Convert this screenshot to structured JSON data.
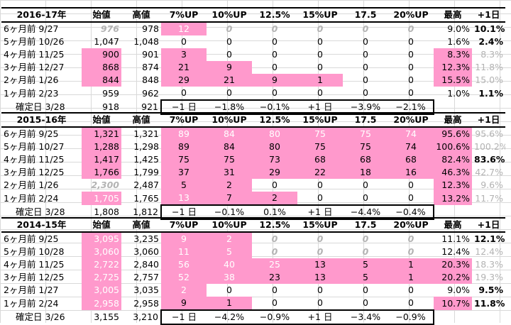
{
  "headers": [
    "始値",
    "高値",
    "7%UP",
    "10%UP",
    "12.5%",
    "15%UP",
    "17.5",
    "20%UP",
    "最高",
    "+1日"
  ],
  "blocks": [
    {
      "year": "2016-17年",
      "rows": [
        {
          "label": "6ヶ月前  9/27",
          "open": "976",
          "high": "978",
          "c7": "12",
          "c10": "0",
          "c12": "0",
          "c15": "0",
          "c17": "0",
          "c20": "0",
          "max": "9.0%",
          "p1": "10.1%"
        },
        {
          "label": "5ヶ月前 10/26",
          "open": "1,047",
          "high": "1,048",
          "c7": "0",
          "c10": "0",
          "c12": "0",
          "c15": "0",
          "c17": "0",
          "c20": "0",
          "max": "1.6%",
          "p1": "2.4%"
        },
        {
          "label": "4ヶ月前 11/25",
          "open": "900",
          "high": "901",
          "c7": "3",
          "c10": "0",
          "c12": "0",
          "c15": "0",
          "c17": "0",
          "c20": "0",
          "max": "8.3%",
          "p1": "8.3%"
        },
        {
          "label": "3ヶ月前 12/27",
          "open": "868",
          "high": "874",
          "c7": "21",
          "c10": "9",
          "c12": "0",
          "c15": "0",
          "c17": "0",
          "c20": "0",
          "max": "12.3%",
          "p1": "11.8%"
        },
        {
          "label": "2ヶ月前  1/26",
          "open": "844",
          "high": "848",
          "c7": "29",
          "c10": "21",
          "c12": "9",
          "c15": "1",
          "c17": "0",
          "c20": "0",
          "max": "15.5%",
          "p1": "15.0%"
        },
        {
          "label": "1ヶ月前  2/23",
          "open": "959",
          "high": "962",
          "c7": "0",
          "c10": "0",
          "c12": "0",
          "c15": "0",
          "c17": "0",
          "c20": "0",
          "max": "1.0%",
          "p1": "1.1%"
        }
      ],
      "last": {
        "label": "確定日  3/28",
        "open": "918",
        "high": "921",
        "c7": "−1 日",
        "c10": "−1.8%",
        "c12": "−0.1%",
        "c15": "+1 日",
        "c17": "−3.9%",
        "c20": "−2.1%"
      }
    },
    {
      "year": "2015-16年",
      "rows": [
        {
          "label": "6ヶ月前  9/25",
          "open": "1,321",
          "high": "1,321",
          "c7": "89",
          "c10": "84",
          "c12": "80",
          "c15": "75",
          "c17": "75",
          "c20": "74",
          "max": "95.6%",
          "p1": "95.6%"
        },
        {
          "label": "5ヶ月前 10/27",
          "open": "1,288",
          "high": "1,298",
          "c7": "89",
          "c10": "84",
          "c12": "80",
          "c15": "75",
          "c17": "75",
          "c20": "74",
          "max": "100.6%",
          "p1": "100.2%"
        },
        {
          "label": "4ヶ月前 11/25",
          "open": "1,417",
          "high": "1,425",
          "c7": "75",
          "c10": "75",
          "c12": "73",
          "c15": "68",
          "c17": "68",
          "c20": "68",
          "max": "82.4%",
          "p1": "83.6%"
        },
        {
          "label": "3ヶ月前 12/25",
          "open": "1,766",
          "high": "1,799",
          "c7": "37",
          "c10": "31",
          "c12": "29",
          "c15": "22",
          "c17": "18",
          "c20": "16",
          "max": "46.3%",
          "p1": "42.7%"
        },
        {
          "label": "2ヶ月前  1/26",
          "open": "2,300",
          "high": "2,487",
          "c7": "5",
          "c10": "2",
          "c12": "0",
          "c15": "0",
          "c17": "0",
          "c20": "0",
          "max": "12.3%",
          "p1": "9.6%"
        },
        {
          "label": "1ヶ月前  2/24",
          "open": "1,705",
          "high": "1,765",
          "c7": "13",
          "c10": "7",
          "c12": "2",
          "c15": "0",
          "c17": "0",
          "c20": "0",
          "max": "13.2%",
          "p1": "11.7%"
        }
      ],
      "last": {
        "label": "確定日  3/28",
        "open": "1,808",
        "high": "1,812",
        "c7": "−1 日",
        "c10": "−0.1%",
        "c12": "0.1%",
        "c15": "+1 日",
        "c17": "−4.4%",
        "c20": "−0.4%"
      }
    },
    {
      "year": "2014-15年",
      "rows": [
        {
          "label": "6ヶ月前  9/25",
          "open": "3,095",
          "high": "3,235",
          "c7": "9",
          "c10": "2",
          "c12": "0",
          "c15": "0",
          "c17": "0",
          "c20": "0",
          "max": "11.1%",
          "p1": "12.1%"
        },
        {
          "label": "5ヶ月前 10/28",
          "open": "3,060",
          "high": "3,060",
          "c7": "11",
          "c10": "5",
          "c12": "0",
          "c15": "0",
          "c17": "0",
          "c20": "0",
          "max": "12.4%",
          "p1": "12.4%"
        },
        {
          "label": "4ヶ月前 11/25",
          "open": "2,722",
          "high": "2,840",
          "c7": "56",
          "c10": "40",
          "c12": "25",
          "c15": "13",
          "c17": "5",
          "c20": "1",
          "max": "20.3%",
          "p1": "18.3%"
        },
        {
          "label": "3ヶ月前 12/25",
          "open": "2,725",
          "high": "2,757",
          "c7": "52",
          "c10": "38",
          "c12": "23",
          "c15": "13",
          "c17": "5",
          "c20": "1",
          "max": "20.2%",
          "p1": "19.3%"
        },
        {
          "label": "2ヶ月前  1/27",
          "open": "3,005",
          "high": "3,035",
          "c7": "2",
          "c10": "0",
          "c12": "0",
          "c15": "0",
          "c17": "0",
          "c20": "0",
          "max": "9.0%",
          "p1": "9.5%"
        },
        {
          "label": "1ヶ月前  2/24",
          "open": "2,958",
          "high": "2,958",
          "c7": "9",
          "c10": "1",
          "c12": "0",
          "c15": "0",
          "c17": "0",
          "c20": "0",
          "max": "10.7%",
          "p1": "11.8%"
        }
      ],
      "last": {
        "label": "確定日  3/26",
        "open": "3,155",
        "high": "3,210",
        "c7": "−1 日",
        "c10": "−4.2%",
        "c12": "−0.9%",
        "c15": "+1 日",
        "c17": "−3.4%",
        "c20": "−0.9%"
      }
    }
  ],
  "colors": {
    "pink": "#ff99cc",
    "gray": "#b3b3b3",
    "grid": "#d9d9d9"
  }
}
